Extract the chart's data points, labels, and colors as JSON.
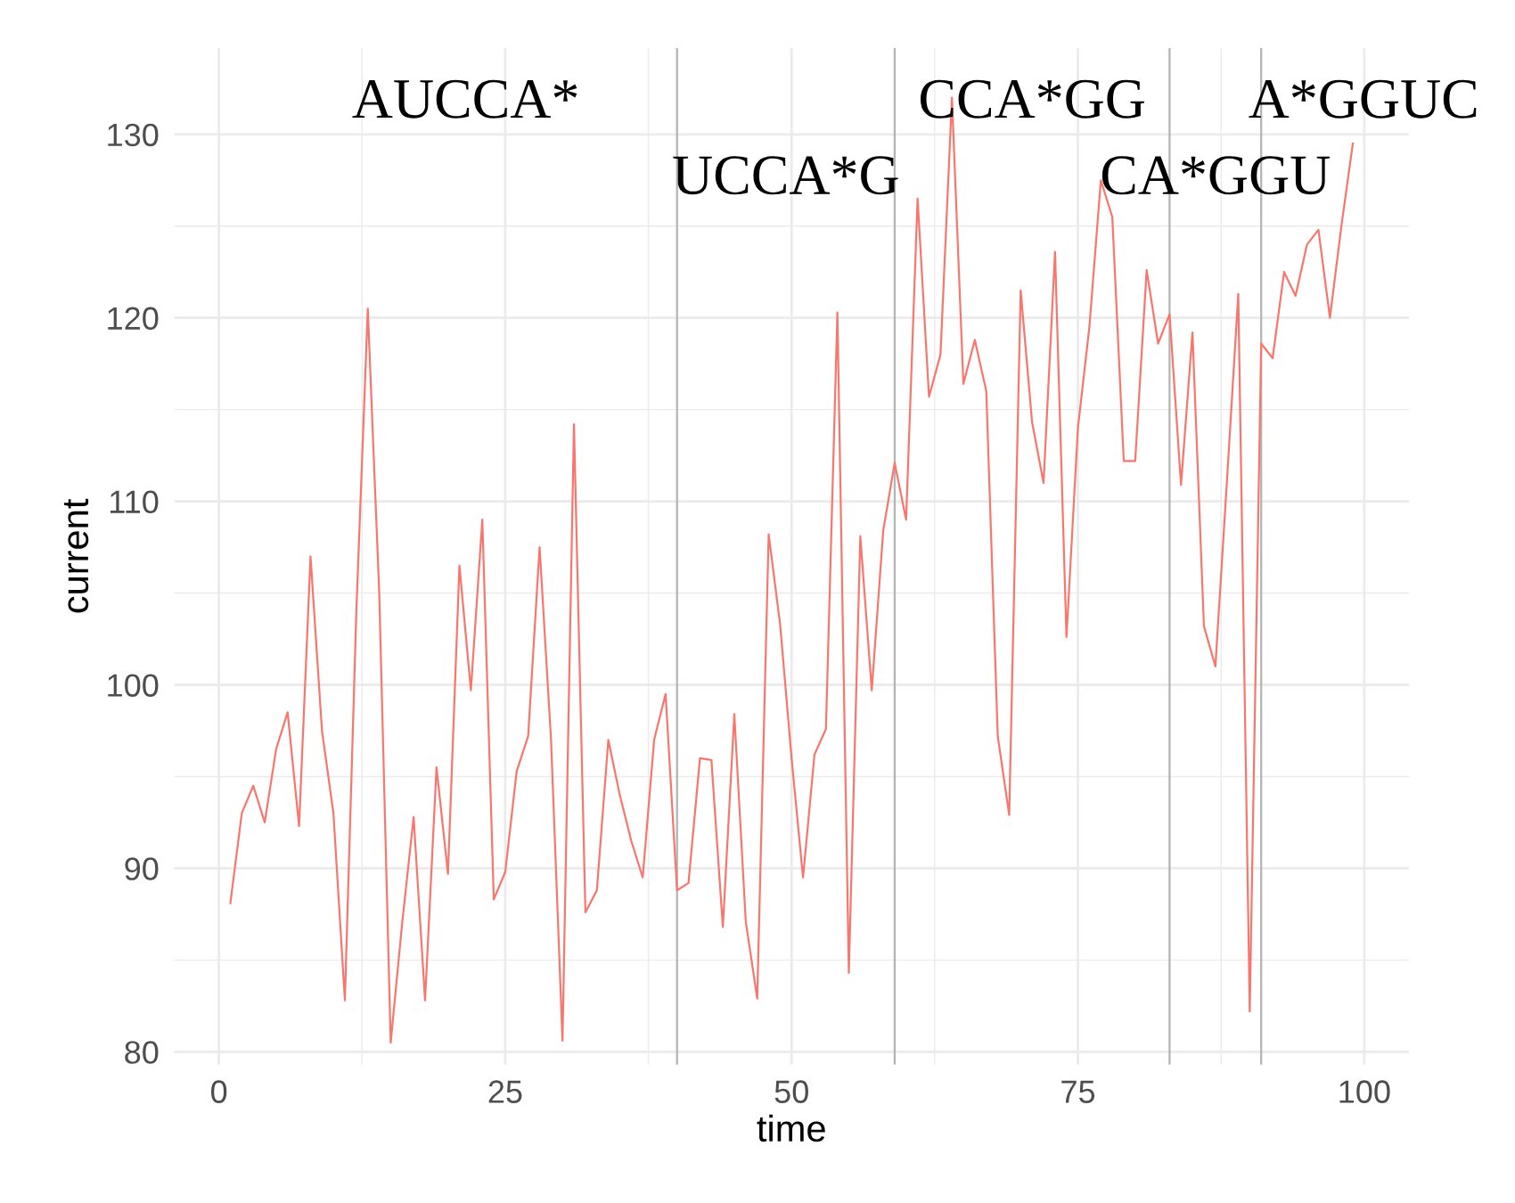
{
  "chart_data": {
    "type": "line",
    "xlabel": "time",
    "ylabel": "current",
    "x": [
      1,
      2,
      3,
      4,
      5,
      6,
      7,
      8,
      9,
      10,
      11,
      12,
      13,
      14,
      15,
      16,
      17,
      18,
      19,
      20,
      21,
      22,
      23,
      24,
      25,
      26,
      27,
      28,
      29,
      30,
      31,
      32,
      33,
      34,
      35,
      36,
      37,
      38,
      39,
      40,
      41,
      42,
      43,
      44,
      45,
      46,
      47,
      48,
      49,
      50,
      51,
      52,
      53,
      54,
      55,
      56,
      57,
      58,
      59,
      60,
      61,
      62,
      63,
      64,
      65,
      66,
      67,
      68,
      69,
      70,
      71,
      72,
      73,
      74,
      75,
      76,
      77,
      78,
      79,
      80,
      81,
      82,
      83,
      84,
      85,
      86,
      87,
      88,
      89,
      90,
      91,
      92,
      93,
      94,
      95,
      96,
      97,
      98,
      99
    ],
    "series": [
      {
        "color": "#f8766d",
        "values": [
          88.1,
          93.0,
          94.5,
          92.5,
          96.5,
          98.5,
          92.3,
          107,
          97.5,
          93,
          82.8,
          104,
          120.5,
          105,
          80.5,
          87,
          92.8,
          82.8,
          95.5,
          89.7,
          106.5,
          99.7,
          109,
          88.3,
          89.8,
          95.3,
          97.2,
          107.5,
          97,
          80.6,
          114.2,
          87.6,
          88.8,
          97,
          94,
          91.5,
          89.5,
          97,
          99.5,
          88.8,
          89.2,
          96,
          95.9,
          86.8,
          98.4,
          87.1,
          82.9,
          108.2,
          103.3,
          96,
          89.5,
          96.2,
          97.6,
          120.3,
          84.3,
          108.1,
          99.7,
          108.4,
          112.1,
          109,
          126.5,
          115.7,
          118,
          132,
          116.4,
          118.8,
          116,
          97.2,
          92.9,
          121.5,
          114.3,
          111,
          123.6,
          102.6,
          114,
          119.5,
          127.5,
          125.5,
          112.2,
          112.2,
          122.6,
          118.6,
          120.2,
          110.9,
          119.2,
          103.2,
          101,
          111,
          121.3,
          82.2,
          118.6,
          117.8,
          122.5,
          121.2,
          124,
          124.8,
          120,
          125,
          129.5
        ]
      }
    ],
    "xlim": [
      -3.9,
      103.9
    ],
    "ylim": [
      79.3,
      134.7
    ],
    "xticks": [
      0,
      25,
      50,
      75,
      100
    ],
    "yticks": [
      80,
      90,
      100,
      110,
      120,
      130
    ],
    "grid": true,
    "line_style": "solid",
    "marker": "none",
    "ref_lines": [
      {
        "axis": "x",
        "value": 40,
        "color": "#b3b3b3"
      },
      {
        "axis": "x",
        "value": 59,
        "color": "#b3b3b3"
      },
      {
        "axis": "x",
        "value": 83,
        "color": "#b3b3b3"
      },
      {
        "axis": "x",
        "value": 91,
        "color": "#b3b3b3"
      }
    ],
    "annotations": [
      "AUCCA*",
      "UCCA*G",
      "CCA*GG",
      "CA*GGU",
      "A*GGUC"
    ]
  }
}
